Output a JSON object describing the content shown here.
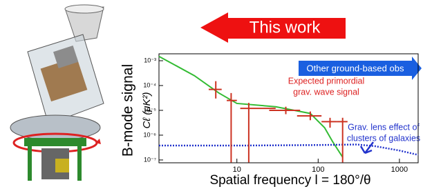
{
  "chart_data": {
    "type": "loglog",
    "ylabel": "B-mode signal",
    "ylabel2": "Cℓ  (μK²)",
    "xlabel": "Spatial frequency  l = 180°/θ",
    "annotations": {
      "this_work": "This work",
      "other": "Other ground-based obs",
      "primordial": [
        "Expected primordial",
        "grav. wave signal"
      ],
      "lens": [
        "Grav. lens effect of",
        "clusters of galaxies"
      ]
    },
    "xlim": [
      1.1,
      1700
    ],
    "ylim": [
      7.7e-08,
      0.0019
    ],
    "xticks": [
      10,
      100,
      1000
    ],
    "yticks": [
      {
        "value": 0.001,
        "label": "10⁻³"
      },
      {
        "value": 0.0001,
        "label": "10⁻⁴"
      },
      {
        "value": 1e-05,
        "label": "10⁻⁵"
      },
      {
        "value": 1e-06,
        "label": "10⁻⁶"
      },
      {
        "value": 1e-07,
        "label": "10⁻⁷"
      }
    ],
    "series": [
      {
        "color": "#33bb33",
        "style": "solid",
        "x": [
          1.1,
          3,
          6,
          10,
          30,
          80,
          120,
          150,
          200
        ],
        "values": [
          0.0015,
          0.00025,
          5e-05,
          1.9e-05,
          1.4e-05,
          7.5e-06,
          2e-06,
          5.6e-07,
          1.3e-07
        ]
      },
      {
        "color": "#2233cc",
        "style": "dotted",
        "x": [
          1.1,
          10,
          100,
          300,
          500,
          1000,
          1700
        ],
        "values": [
          3.8e-07,
          3.8e-07,
          4e-07,
          4.2e-07,
          3.6e-07,
          2.4e-07,
          1.6e-07
        ]
      }
    ],
    "errorbars": {
      "color": "#cc3322",
      "x": [
        5.5,
        8.5,
        14,
        40,
        80,
        140,
        200
      ],
      "values": [
        7e-05,
        2.5e-05,
        1.2e-05,
        1e-05,
        6e-06,
        3.5e-06,
        3.5e-06
      ],
      "x_low": [
        4.5,
        7.5,
        11,
        25,
        55,
        110,
        170
      ],
      "x_high": [
        6.5,
        10,
        30,
        60,
        110,
        170,
        230
      ],
      "y_low": [
        3e-05,
        8e-08,
        8e-08,
        7e-06,
        4e-06,
        2e-06,
        8e-08
      ],
      "y_high": [
        0.00015,
        5e-05,
        2e-05,
        1.4e-05,
        9e-06,
        5e-06,
        5e-06
      ]
    }
  }
}
